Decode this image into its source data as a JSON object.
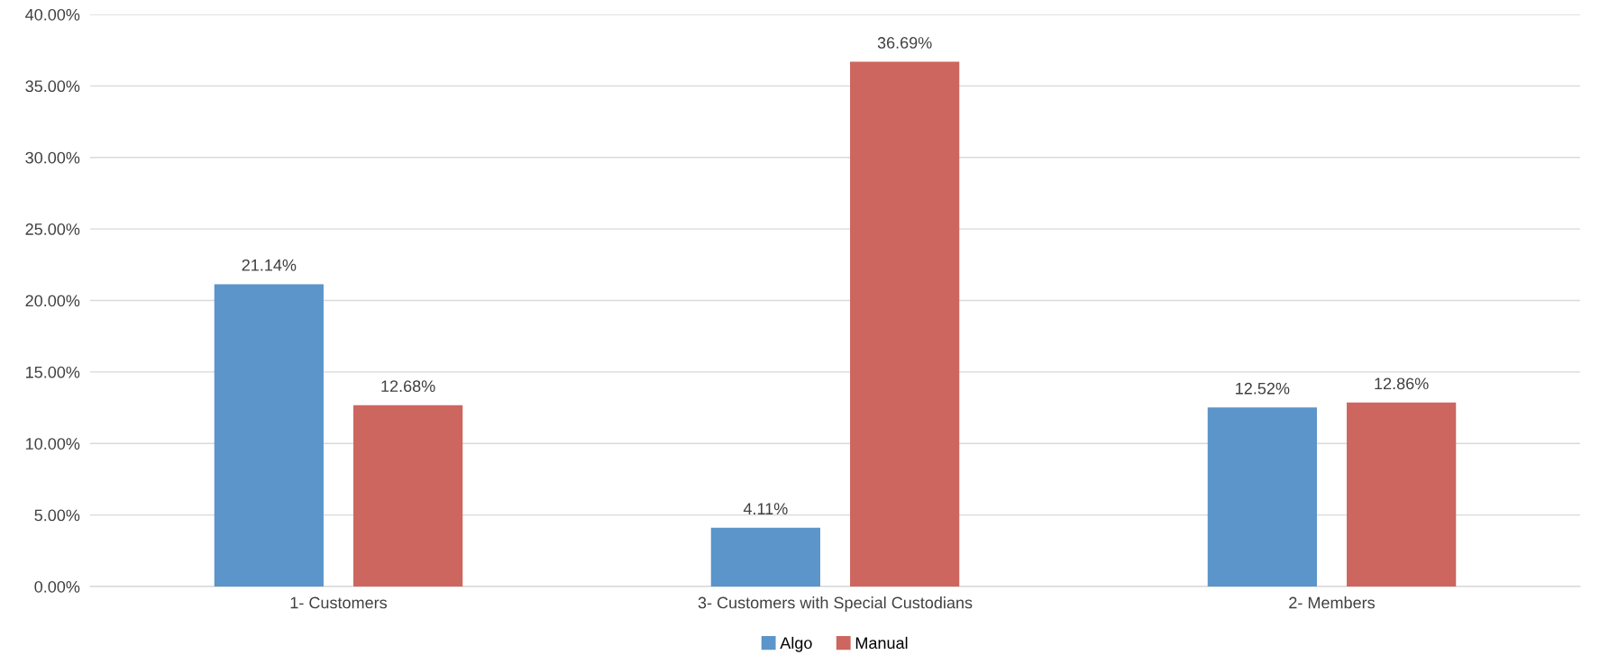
{
  "chart_data": {
    "type": "bar",
    "categories": [
      "1- Customers",
      "3- Customers with Special Custodians",
      "2- Members"
    ],
    "series": [
      {
        "name": "Algo",
        "color": "#5b95c9",
        "values": [
          21.14,
          4.11,
          12.52
        ],
        "value_labels": [
          "21.14%",
          "4.11%",
          "12.52%"
        ]
      },
      {
        "name": "Manual",
        "color": "#cd665e",
        "values": [
          12.68,
          36.69,
          12.86
        ],
        "value_labels": [
          "12.68%",
          "36.69%",
          "12.86%"
        ]
      }
    ],
    "ylim": [
      0,
      40
    ],
    "yticks": [
      {
        "value": 0,
        "label": "0.00%"
      },
      {
        "value": 5,
        "label": "5.00%"
      },
      {
        "value": 10,
        "label": "10.00%"
      },
      {
        "value": 15,
        "label": "15.00%"
      },
      {
        "value": 20,
        "label": "20.00%"
      },
      {
        "value": 25,
        "label": "25.00%"
      },
      {
        "value": 30,
        "label": "30.00%"
      },
      {
        "value": 35,
        "label": "35.00%"
      },
      {
        "value": 40,
        "label": "40.00%"
      }
    ],
    "grid": "y",
    "legend": "bottom"
  }
}
